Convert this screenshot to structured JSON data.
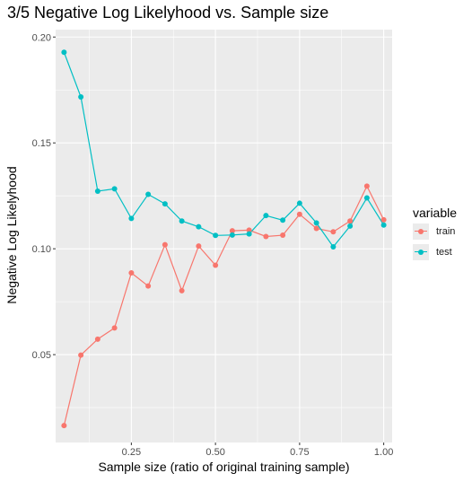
{
  "chart_data": {
    "type": "line",
    "title": "3/5 Negative Log Likelyhood vs. Sample size",
    "xlabel": "Sample size (ratio of original training sample)",
    "ylabel": "Negative Log Likelyhood",
    "xlim": [
      0.025,
      1.025
    ],
    "ylim": [
      0.0085,
      0.2035
    ],
    "xticks": [
      0.25,
      0.5,
      0.75,
      1.0
    ],
    "xtick_labels": [
      "0.25",
      "0.50",
      "0.75",
      "1.00"
    ],
    "yticks": [
      0.05,
      0.1,
      0.15,
      0.2
    ],
    "ytick_labels": [
      "0.05",
      "0.10",
      "0.15",
      "0.20"
    ],
    "grid": true,
    "legend": {
      "title": "variable",
      "position": "right"
    },
    "x": [
      0.05,
      0.1,
      0.15,
      0.2,
      0.25,
      0.3,
      0.35,
      0.4,
      0.45,
      0.5,
      0.55,
      0.6,
      0.65,
      0.7,
      0.75,
      0.8,
      0.85,
      0.9,
      0.95,
      1.0
    ],
    "series": [
      {
        "name": "train",
        "color": "#f8766d",
        "values": [
          0.0165,
          0.0498,
          0.0573,
          0.0626,
          0.0886,
          0.0824,
          0.1019,
          0.0802,
          0.1013,
          0.0922,
          0.1085,
          0.1088,
          0.1058,
          0.1064,
          0.1163,
          0.1096,
          0.108,
          0.1131,
          0.1296,
          0.1137
        ]
      },
      {
        "name": "test",
        "color": "#00bfc4",
        "values": [
          0.1928,
          0.1717,
          0.1272,
          0.1283,
          0.1143,
          0.1257,
          0.1212,
          0.1131,
          0.1104,
          0.1063,
          0.1065,
          0.107,
          0.1157,
          0.1135,
          0.1215,
          0.1122,
          0.1009,
          0.1107,
          0.124,
          0.1112
        ]
      }
    ]
  }
}
